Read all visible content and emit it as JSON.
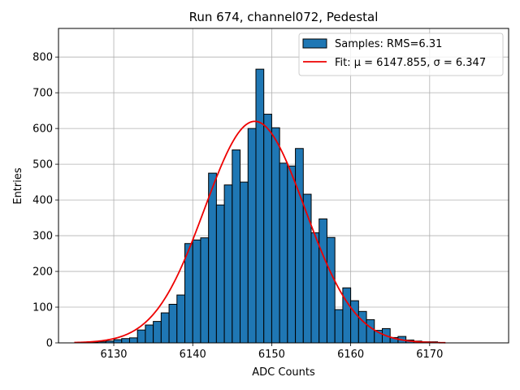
{
  "chart_data": {
    "type": "bar",
    "title": "Run 674, channel072, Pedestal",
    "xlabel": "ADC Counts",
    "ylabel": "Entries",
    "xlim": [
      6123,
      6180
    ],
    "ylim": [
      0,
      880
    ],
    "xticks": [
      6130,
      6140,
      6150,
      6160,
      6170
    ],
    "yticks": [
      0,
      100,
      200,
      300,
      400,
      500,
      600,
      700,
      800
    ],
    "grid": true,
    "legend_position": "top-right",
    "bin_width": 1,
    "bin_left_edges": [
      6126,
      6127,
      6128,
      6129,
      6130,
      6131,
      6132,
      6133,
      6134,
      6135,
      6136,
      6137,
      6138,
      6139,
      6140,
      6141,
      6142,
      6143,
      6144,
      6145,
      6146,
      6147,
      6148,
      6149,
      6150,
      6151,
      6152,
      6153,
      6154,
      6155,
      6156,
      6157,
      6158,
      6159,
      6160,
      6161,
      6162,
      6163,
      6164,
      6165,
      6166,
      6167,
      6168,
      6169,
      6170
    ],
    "series": [
      {
        "name": "Samples: RMS=6.31",
        "kind": "histogram",
        "color": "#1f77b4",
        "edgecolor": "#000000",
        "values": [
          1,
          2,
          3,
          5,
          9,
          12,
          14,
          36,
          50,
          60,
          84,
          108,
          134,
          278,
          288,
          294,
          475,
          386,
          442,
          540,
          450,
          600,
          766,
          640,
          602,
          503,
          495,
          544,
          416,
          308,
          347,
          295,
          93,
          154,
          118,
          88,
          65,
          35,
          40,
          15,
          18,
          8,
          5,
          3,
          3
        ]
      },
      {
        "name": "Fit: μ = 6147.855, σ = 6.347",
        "kind": "gaussian-fit",
        "color": "#ee0000",
        "mu": 6147.855,
        "sigma": 6.347,
        "amplitude": 620,
        "x_range": [
          6125,
          6172
        ]
      }
    ]
  }
}
